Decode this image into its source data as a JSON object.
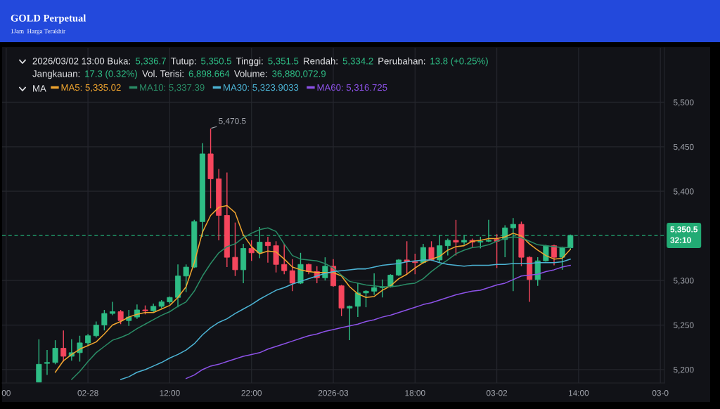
{
  "chart_data": {
    "type": "candlestick",
    "title": "GOLD Perpetual",
    "subtitle": "1Jam  Harga Terakhir",
    "categories": [
      "00",
      null,
      null,
      null,
      null,
      null,
      null,
      null,
      null,
      null,
      "02-28",
      null,
      null,
      null,
      null,
      null,
      null,
      null,
      null,
      null,
      "12:00",
      null,
      null,
      null,
      null,
      null,
      null,
      null,
      null,
      null,
      "22:00",
      null,
      null,
      null,
      null,
      null,
      null,
      null,
      null,
      null,
      "2026-03",
      null,
      null,
      null,
      null,
      null,
      null,
      null,
      null,
      null,
      "18:00",
      null,
      null,
      null,
      null,
      null,
      null,
      null,
      null,
      null,
      "03-02",
      null,
      null,
      null,
      null,
      null,
      null,
      null,
      null,
      null,
      "14:00",
      null,
      null,
      null,
      null,
      null,
      null,
      null,
      null,
      null,
      "03-0"
    ],
    "ohlc": [
      null,
      null,
      null,
      null,
      [
        5186,
        5234,
        5186,
        5206
      ],
      [
        5207,
        5222,
        5194,
        5208
      ],
      [
        5208,
        5233,
        5206,
        5224
      ],
      [
        5224,
        5244,
        5209,
        5215
      ],
      [
        5215,
        5234,
        5210,
        5219
      ],
      [
        5219,
        5238,
        5209,
        5230
      ],
      [
        5230,
        5240,
        5227,
        5238
      ],
      [
        5238,
        5254,
        5236,
        5250
      ],
      [
        5250,
        5267,
        5244,
        5263
      ],
      [
        5263,
        5276,
        5261,
        5265
      ],
      [
        5265,
        5267,
        5251,
        5255
      ],
      [
        5255,
        5267,
        5249,
        5259
      ],
      [
        5259,
        5273,
        5257,
        5267
      ],
      [
        5267,
        5272,
        5262,
        5266
      ],
      [
        5266,
        5274,
        5264,
        5271
      ],
      [
        5271,
        5278,
        5269,
        5276
      ],
      [
        5276,
        5282,
        5274,
        5281
      ],
      [
        5281,
        5318,
        5270,
        5305
      ],
      [
        5305,
        5318,
        5287,
        5315
      ],
      [
        5315,
        5368,
        5314,
        5366
      ],
      [
        5366,
        5454,
        5349,
        5442
      ],
      [
        5442,
        5470.5,
        5381,
        5414
      ],
      [
        5414,
        5425,
        5345,
        5373
      ],
      [
        5373,
        5421,
        5315,
        5326
      ],
      [
        5326,
        5365,
        5305,
        5312
      ],
      [
        5312,
        5341,
        5297,
        5336
      ],
      [
        5336,
        5345,
        5322,
        5331
      ],
      [
        5331,
        5360,
        5325,
        5343
      ],
      [
        5343,
        5349,
        5320,
        5339
      ],
      [
        5339,
        5344,
        5309,
        5318
      ],
      [
        5318,
        5341,
        5307,
        5311
      ],
      [
        5311,
        5324,
        5288,
        5297
      ],
      [
        5297,
        5331,
        5296,
        5318
      ],
      [
        5318,
        5319,
        5307,
        5310
      ],
      [
        5310,
        5316,
        5297,
        5303
      ],
      [
        5303,
        5326,
        5300,
        5316
      ],
      [
        5316,
        5324,
        5293,
        5294
      ],
      [
        5294,
        5295,
        5260,
        5269
      ],
      [
        5269,
        5272,
        5233,
        5271
      ],
      [
        5271,
        5297,
        5259,
        5286
      ],
      [
        5286,
        5289,
        5270,
        5288
      ],
      [
        5288,
        5308,
        5284,
        5292
      ],
      [
        5292,
        5301,
        5281,
        5293
      ],
      [
        5293,
        5307,
        5292,
        5306
      ],
      [
        5306,
        5324,
        5305,
        5323
      ],
      [
        5323,
        5344,
        5307,
        5321
      ],
      [
        5321,
        5330,
        5307,
        5320
      ],
      [
        5320,
        5341,
        5319,
        5337
      ],
      [
        5337,
        5344,
        5322,
        5323
      ],
      [
        5323,
        5351,
        5320,
        5339
      ],
      [
        5339,
        5347,
        5328,
        5345
      ],
      [
        5345,
        5368,
        5328,
        5343
      ],
      [
        5343,
        5351,
        5340,
        5345
      ],
      [
        5345,
        5347,
        5337,
        5343
      ],
      [
        5343,
        5349,
        5336,
        5344
      ],
      [
        5344,
        5368,
        5343,
        5345
      ],
      [
        5346,
        5352,
        5314,
        5344
      ],
      [
        5346,
        5362,
        5326,
        5359
      ],
      [
        5359,
        5370,
        5288,
        5363
      ],
      [
        5363,
        5366,
        5316,
        5326
      ],
      [
        5326,
        5327,
        5276,
        5301
      ],
      [
        5301,
        5326,
        5294,
        5322
      ],
      [
        5322,
        5340,
        5321,
        5339
      ],
      [
        5339,
        5340,
        5317,
        5326
      ],
      [
        5326,
        5338,
        5312,
        5337
      ],
      [
        5336.7,
        5351.5,
        5334.2,
        5350.5
      ],
      null,
      null,
      null,
      null,
      null,
      null,
      null,
      null,
      null,
      null,
      null
    ],
    "series": [
      {
        "name": "MA5: 5,335.02",
        "type": "line",
        "color": "#f0a52f",
        "values": [
          null,
          null,
          null,
          null,
          null,
          null,
          5197,
          5210,
          5217,
          5223,
          5227,
          5231,
          5240,
          5250,
          5254,
          5259,
          5262,
          5264,
          5264,
          5268,
          5272,
          5281,
          5293,
          5320,
          5354,
          5373,
          5382,
          5384,
          5376,
          5351,
          5338,
          5330,
          5333,
          5332,
          5324,
          5315,
          5312,
          5310,
          5309,
          5309,
          5309,
          5305,
          5293,
          5285,
          5281,
          5282,
          5289,
          5294,
          5302,
          5307,
          5314,
          5320,
          5324,
          5327,
          5334,
          5338,
          5339,
          5344,
          5345,
          5347,
          5347,
          5349,
          5353,
          5350,
          5341,
          5334,
          5328,
          5324,
          5325,
          5335,
          null,
          null,
          null,
          null,
          null,
          null,
          null,
          null,
          null,
          null,
          null
        ]
      },
      {
        "name": "MA10: 5,337.39",
        "type": "line",
        "color": "#2a8c66",
        "values": [
          null,
          null,
          null,
          null,
          null,
          null,
          null,
          null,
          5189,
          5198,
          5209,
          5219,
          5226,
          5233,
          5236,
          5240,
          5246,
          5251,
          5256,
          5261,
          5265,
          5271,
          5276,
          5288,
          5305,
          5319,
          5331,
          5338,
          5341,
          5348,
          5353,
          5357,
          5359,
          5355,
          5341,
          5328,
          5324,
          5323,
          5322,
          5319,
          5314,
          5306,
          5299,
          5297,
          5295,
          5294,
          5293,
          5293,
          5294,
          5296,
          5297,
          5302,
          5310,
          5317,
          5323,
          5330,
          5334,
          5337,
          5338,
          5340,
          5344,
          5347,
          5349,
          5348,
          5344,
          5340,
          5339,
          5338,
          5337,
          5337,
          null,
          null,
          null,
          null,
          null,
          null,
          null,
          null,
          null,
          null,
          null
        ]
      },
      {
        "name": "MA30: 5,323.9033",
        "type": "line",
        "color": "#4cb3d4",
        "values": [
          null,
          null,
          null,
          null,
          null,
          null,
          null,
          null,
          null,
          null,
          null,
          null,
          null,
          null,
          5189,
          5192,
          5197,
          5200,
          5204,
          5208,
          5213,
          5217,
          5222,
          5229,
          5239,
          5247,
          5253,
          5257,
          5263,
          5268,
          5273,
          5279,
          5284,
          5289,
          5292,
          5296,
          5299,
          5302,
          5305,
          5308,
          5310,
          5311,
          5312,
          5313,
          5313,
          5315,
          5317,
          5318,
          5319,
          5321,
          5322,
          5323,
          5323,
          5320,
          5318,
          5317,
          5316,
          5317,
          5317,
          5317,
          5318,
          5318,
          5319,
          5319,
          5319,
          5320,
          5320,
          5320,
          5321,
          5324,
          null,
          null,
          null,
          null,
          null,
          null,
          null,
          null,
          null,
          null,
          null
        ]
      },
      {
        "name": "MA60: 5,316.725",
        "type": "line",
        "color": "#8d52e8",
        "values": [
          null,
          null,
          null,
          null,
          null,
          null,
          null,
          null,
          null,
          null,
          null,
          null,
          null,
          null,
          null,
          null,
          null,
          null,
          null,
          null,
          null,
          null,
          5190,
          5194,
          5200,
          5204,
          5206,
          5209,
          5212,
          5215,
          5217,
          5219,
          5223,
          5226,
          5229,
          5232,
          5235,
          5238,
          5240,
          5243,
          5245,
          5247,
          5249,
          5251,
          5254,
          5256,
          5259,
          5261,
          5264,
          5267,
          5270,
          5273,
          5275,
          5278,
          5281,
          5284,
          5286,
          5288,
          5289,
          5292,
          5295,
          5297,
          5301,
          5305,
          5306,
          5307,
          5310,
          5312,
          5315,
          5317,
          null,
          null,
          null,
          null,
          null,
          null,
          null,
          null,
          null,
          null,
          null
        ]
      }
    ],
    "legend": "top left",
    "legend_title": "MA",
    "ylim": [
      5185,
      5561
    ],
    "yticks": [
      {
        "value": 5200,
        "label": "5,200"
      },
      {
        "value": 5250,
        "label": "5,250"
      },
      {
        "value": 5300,
        "label": "5,300"
      },
      {
        "value": 5400,
        "label": "5,400"
      },
      {
        "value": 5450,
        "label": "5,450"
      },
      {
        "value": 5500,
        "label": "5,500"
      }
    ],
    "grid": true,
    "ref_lines": [
      {
        "axis": "y",
        "value": 5350.5,
        "label": "5,350.5\n32:10",
        "color": "#22ab74",
        "line_style": "dashed"
      }
    ],
    "annotations": [
      "2026/03/02 13:00 Buka: 5,336.7 Tutup: 5,350.5 Tinggi: 5,351.5 Rendah: 5,334.2 Perubahan: 13.8 (+0.25%)",
      "Jangkauan: 17.3 (0.32%) Vol. Terisi: 6,898.664 Volume: 36,880,072.9",
      "5,470.5"
    ]
  }
}
